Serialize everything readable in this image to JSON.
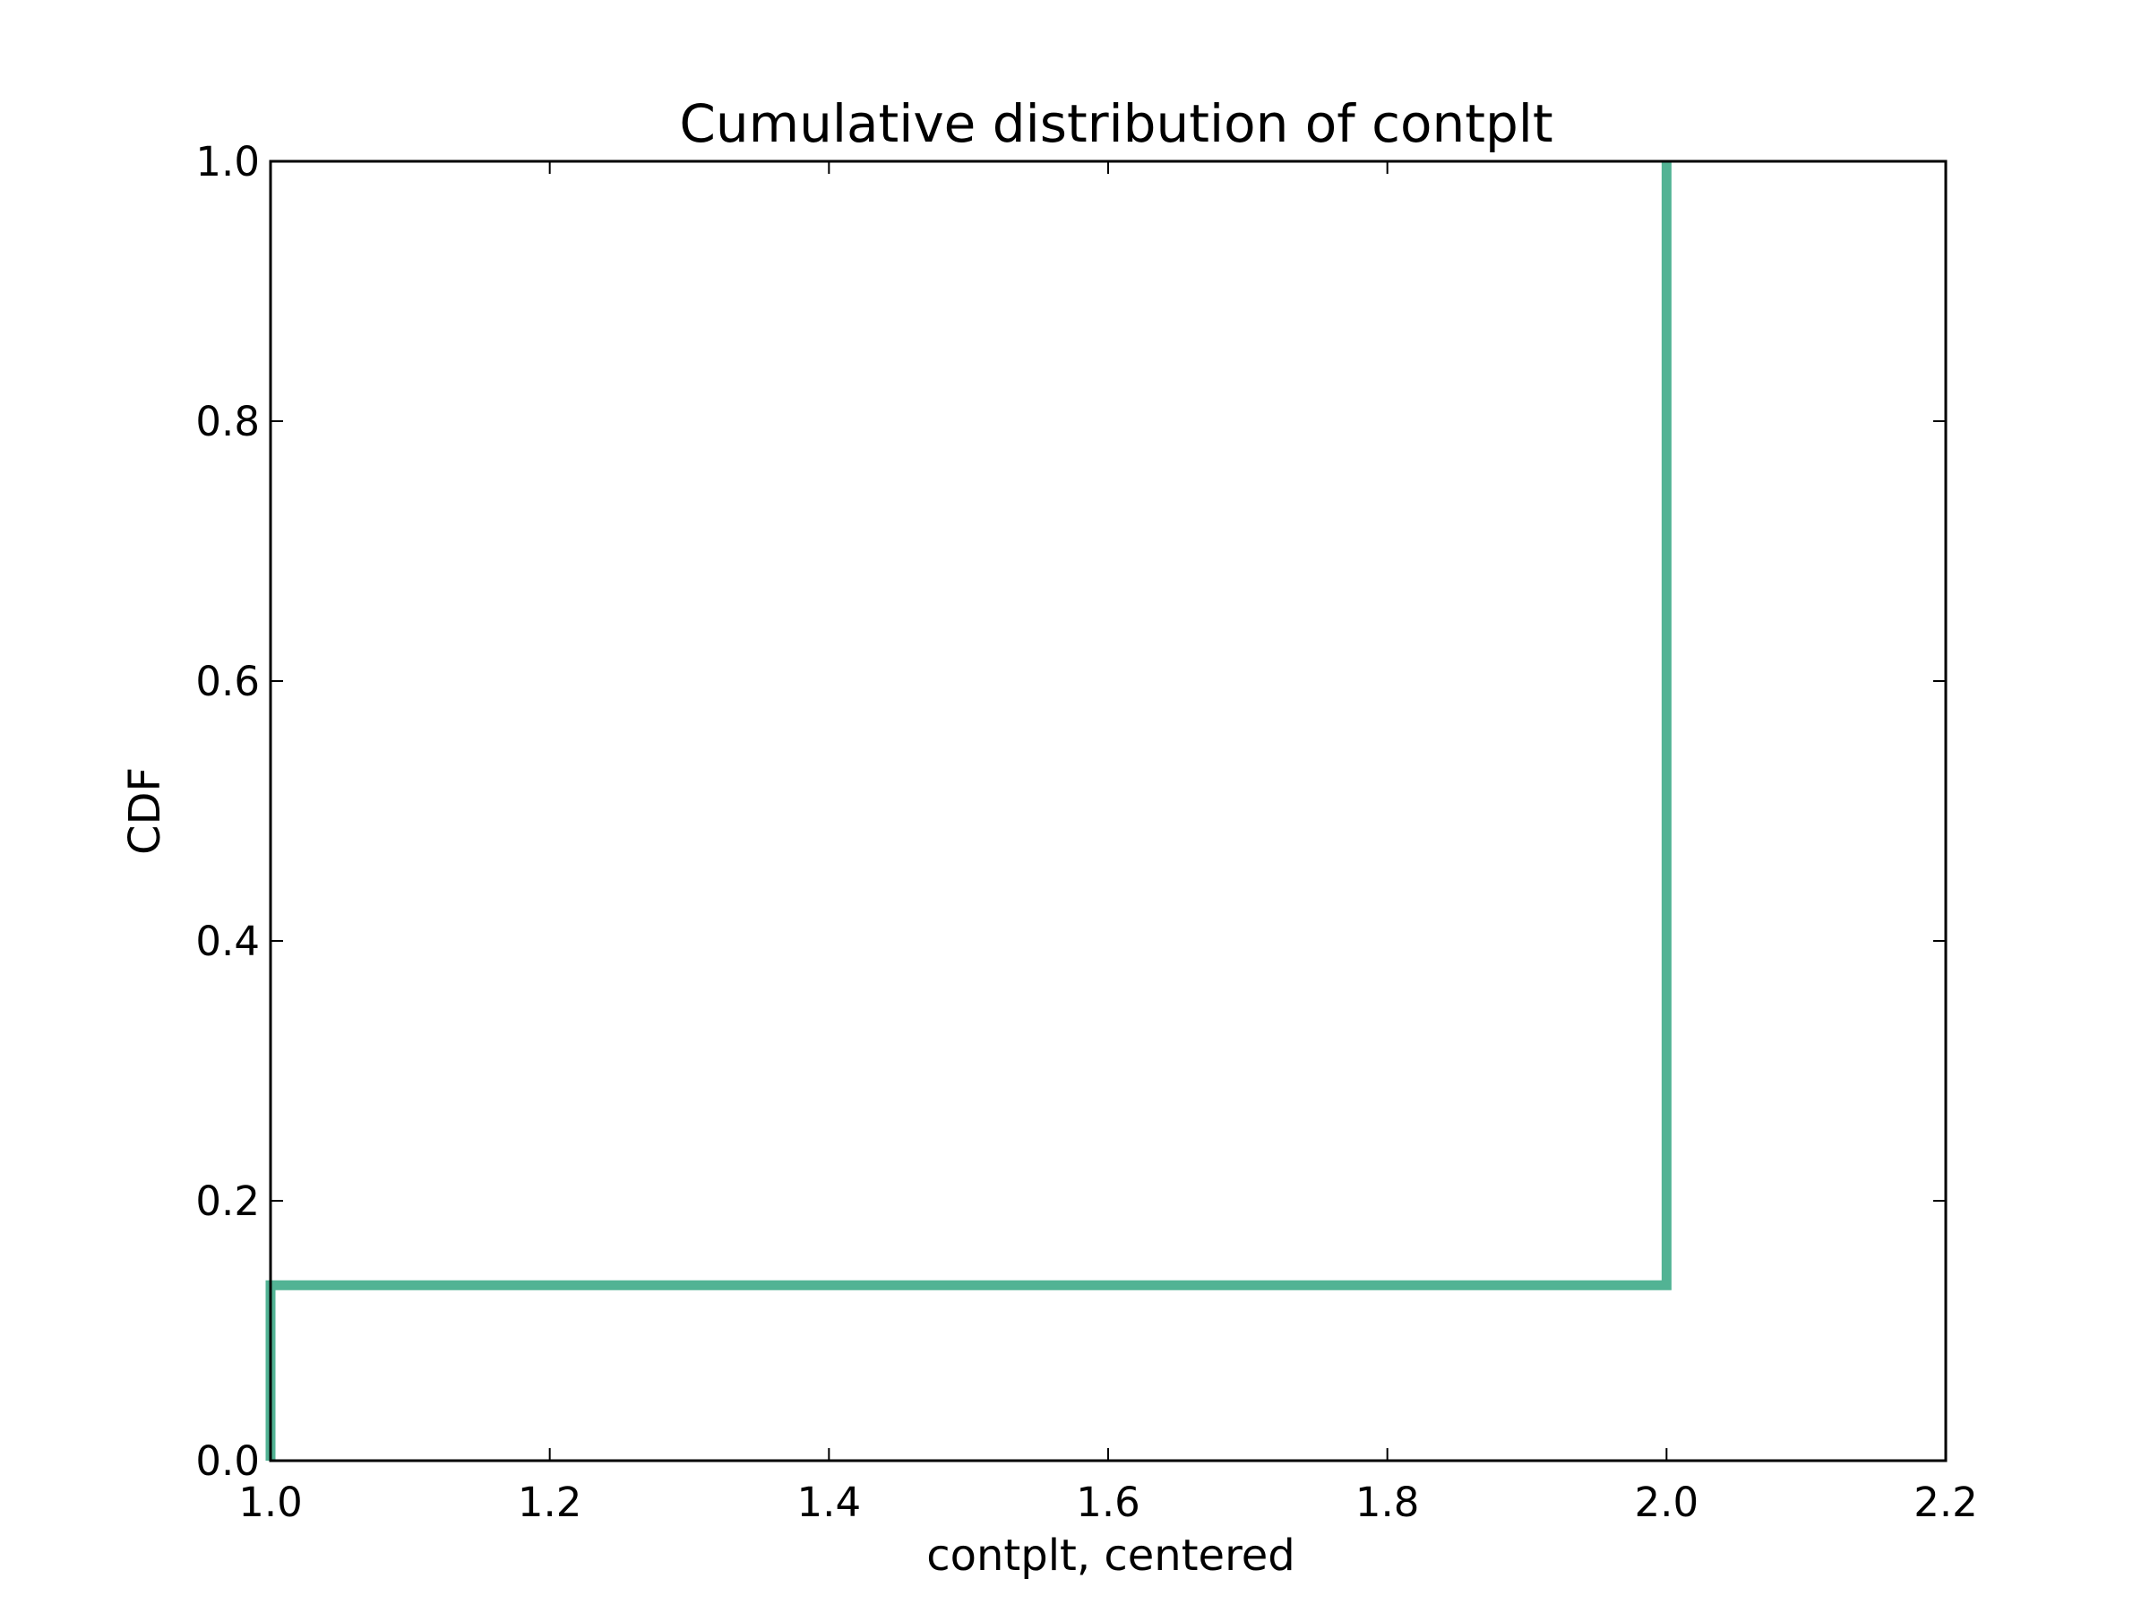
{
  "chart_data": {
    "type": "line",
    "title": "Cumulative distribution of contplt",
    "xlabel": "contplt, centered",
    "ylabel": "CDF",
    "xlim": [
      1.0,
      2.2
    ],
    "ylim": [
      0.0,
      1.0
    ],
    "xticks": [
      1.0,
      1.2,
      1.4,
      1.6,
      1.8,
      2.0,
      2.2
    ],
    "xtick_labels": [
      "1.0",
      "1.2",
      "1.4",
      "1.6",
      "1.8",
      "2.0",
      "2.2"
    ],
    "yticks": [
      0.0,
      0.2,
      0.4,
      0.6,
      0.8,
      1.0
    ],
    "ytick_labels": [
      "0.0",
      "0.2",
      "0.4",
      "0.6",
      "0.8",
      "1.0"
    ],
    "grid": false,
    "step": "post",
    "series": [
      {
        "x": [
          1.0,
          1.0,
          2.0,
          2.0
        ],
        "y": [
          0.0,
          0.135,
          0.135,
          1.0
        ],
        "color": "#52b394"
      }
    ]
  }
}
